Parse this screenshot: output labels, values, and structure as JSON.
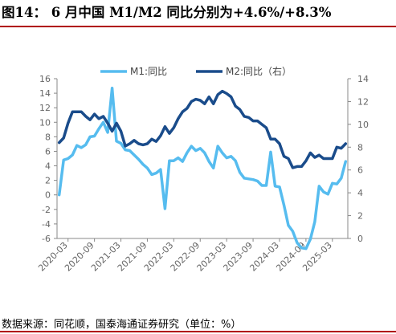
{
  "figure_title": "图14：  6 月中国 M1/M2 同比分别为+4.6%/+8.3%",
  "source_note": "数据来源：同花顺，国泰海通证券研究（单位：%）",
  "colors": {
    "m1": "#56BCEF",
    "m2": "#1A4C8B",
    "accent_rule": "#B00000",
    "axis": "#888888"
  },
  "chart_data": {
    "type": "line",
    "x": [
      "2020-01",
      "2020-02",
      "2020-03",
      "2020-04",
      "2020-05",
      "2020-06",
      "2020-07",
      "2020-08",
      "2020-09",
      "2020-10",
      "2020-11",
      "2020-12",
      "2021-01",
      "2021-02",
      "2021-03",
      "2021-04",
      "2021-05",
      "2021-06",
      "2021-07",
      "2021-08",
      "2021-09",
      "2021-10",
      "2021-11",
      "2021-12",
      "2022-01",
      "2022-02",
      "2022-03",
      "2022-04",
      "2022-05",
      "2022-06",
      "2022-07",
      "2022-08",
      "2022-09",
      "2022-10",
      "2022-11",
      "2022-12",
      "2023-01",
      "2023-02",
      "2023-03",
      "2023-04",
      "2023-05",
      "2023-06",
      "2023-07",
      "2023-08",
      "2023-09",
      "2023-10",
      "2023-11",
      "2023-12",
      "2024-01",
      "2024-02",
      "2024-03",
      "2024-04",
      "2024-05",
      "2024-06",
      "2024-07",
      "2024-08",
      "2024-09",
      "2024-10",
      "2024-11",
      "2024-12",
      "2025-01",
      "2025-02",
      "2025-03",
      "2025-04",
      "2025-05",
      "2025-06"
    ],
    "x_tick_labels": [
      "2020-03",
      "2020-09",
      "2021-03",
      "2021-09",
      "2022-03",
      "2022-09",
      "2023-03",
      "2023-09",
      "2024-03",
      "2024-09",
      "2025-03"
    ],
    "series": [
      {
        "name": "M1:同比",
        "axis": "left",
        "values": [
          0.0,
          4.8,
          5.0,
          5.5,
          6.8,
          6.5,
          6.9,
          8.0,
          8.1,
          9.1,
          10.0,
          8.6,
          14.7,
          7.4,
          7.1,
          6.2,
          6.1,
          5.5,
          4.9,
          4.2,
          3.7,
          2.8,
          3.0,
          3.5,
          -1.9,
          4.7,
          4.7,
          5.1,
          4.6,
          5.8,
          6.7,
          6.1,
          6.4,
          5.8,
          4.6,
          3.7,
          6.7,
          5.8,
          5.1,
          5.3,
          4.7,
          3.1,
          2.3,
          2.2,
          2.1,
          1.9,
          1.3,
          1.3,
          5.9,
          1.2,
          1.1,
          -1.4,
          -4.2,
          -5.0,
          -6.6,
          -7.3,
          -7.4,
          -6.1,
          -3.7,
          1.2,
          0.4,
          0.1,
          1.6,
          1.5,
          2.3,
          4.6
        ]
      },
      {
        "name": "M2:同比（右）",
        "axis": "right",
        "values": [
          8.4,
          8.8,
          10.1,
          11.1,
          11.1,
          11.1,
          10.7,
          10.4,
          10.9,
          10.5,
          10.7,
          10.1,
          9.4,
          10.1,
          9.4,
          8.1,
          8.3,
          8.6,
          8.3,
          8.2,
          8.3,
          8.7,
          8.5,
          9.0,
          9.8,
          9.2,
          9.7,
          10.5,
          11.1,
          11.4,
          12.0,
          12.2,
          12.1,
          11.8,
          12.4,
          11.8,
          12.6,
          12.9,
          12.7,
          12.4,
          11.6,
          11.3,
          10.7,
          10.6,
          10.3,
          10.3,
          10.0,
          9.7,
          8.7,
          8.7,
          8.3,
          7.2,
          7.0,
          6.2,
          6.3,
          6.3,
          6.8,
          7.5,
          7.1,
          7.3,
          7.0,
          7.0,
          7.0,
          8.0,
          7.9,
          8.3
        ]
      }
    ],
    "legend": {
      "placement": "top",
      "entries": [
        "M1:同比",
        "M2:同比（右）"
      ]
    },
    "y_left": {
      "ylim": [
        -6,
        16
      ],
      "ticks": [
        -6,
        -4,
        -2,
        0,
        2,
        4,
        6,
        8,
        10,
        12,
        14,
        16
      ]
    },
    "y_right": {
      "ylim": [
        0,
        14
      ],
      "ticks": [
        0,
        2,
        4,
        6,
        8,
        10,
        12,
        14
      ]
    },
    "grid": false
  }
}
